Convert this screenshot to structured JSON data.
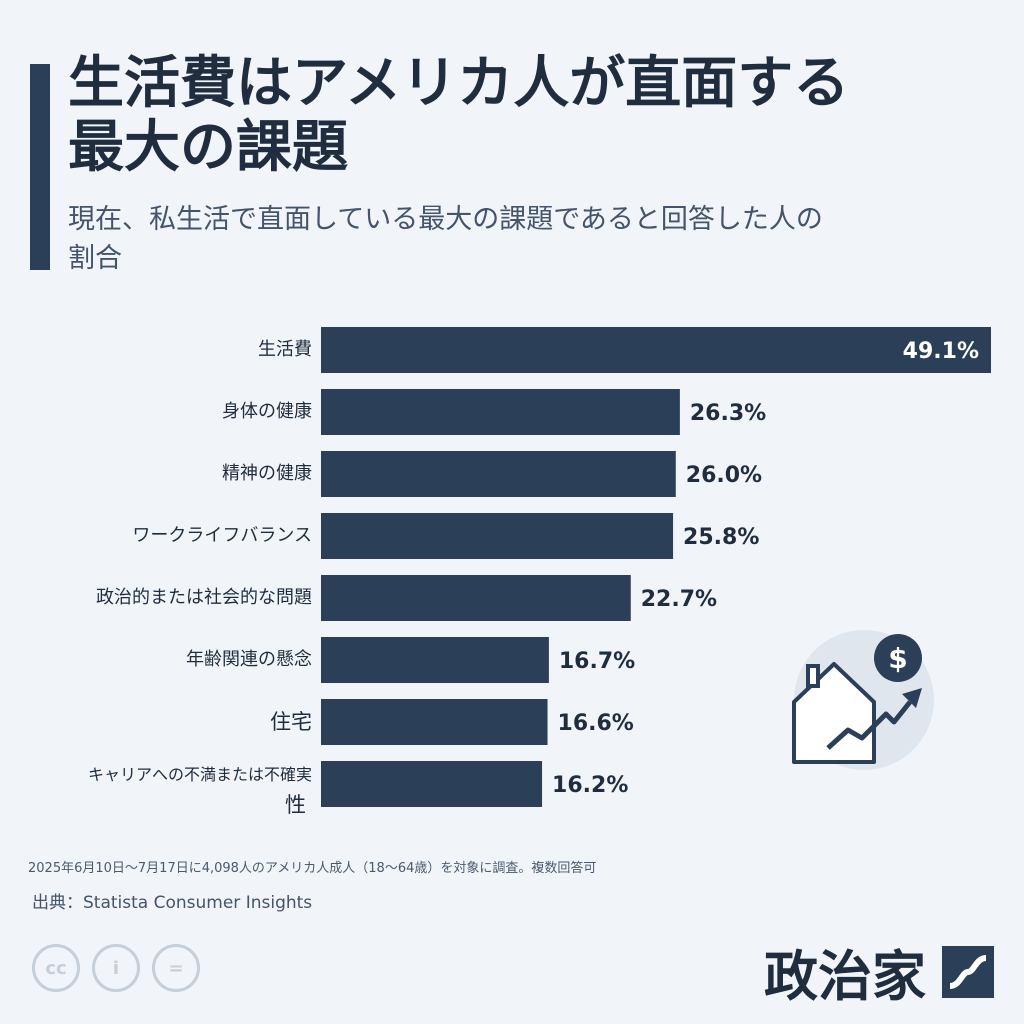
{
  "header": {
    "title_line1": "生活費はアメリカ人が直面する",
    "title_line2": "最大の課題",
    "subtitle_line1": "現在、私生活で直面している最大の課題であると回答した人の",
    "subtitle_line2": "割合"
  },
  "chart_data": {
    "type": "bar",
    "orientation": "horizontal",
    "categories": [
      "生活費",
      "身体の健康",
      "精神の健康",
      "ワークライフバランス",
      "政治的または社会的な問題",
      "年齢関連の懸念",
      "住宅",
      "キャリアへの不満または不確実性"
    ],
    "category_lines": [
      [
        "生活費"
      ],
      [
        "身体の健康"
      ],
      [
        "精神の健康"
      ],
      [
        "ワークライフバランス"
      ],
      [
        "政治的または社会的な問題"
      ],
      [
        "年齢関連の懸念"
      ],
      [
        "住宅"
      ],
      [
        "キャリアへの不満または不確実",
        "性"
      ]
    ],
    "values": [
      49.1,
      26.3,
      26.0,
      25.8,
      22.7,
      16.7,
      16.6,
      16.2
    ],
    "value_labels": [
      "49.1%",
      "26.3%",
      "26.0%",
      "25.8%",
      "22.7%",
      "16.7%",
      "16.6%",
      "16.2%"
    ],
    "xlim": [
      0,
      49.1
    ],
    "bar_color": "#2b3f58"
  },
  "footer": {
    "note": "2025年6月10日～7月17日に4,098人のアメリカ人成人（18～64歳）を対象に調査。複数回答可",
    "source": "出典：Statista Consumer Insights",
    "cc_icons": [
      "cc",
      "i",
      "="
    ],
    "brand": "政治家"
  },
  "icons": [
    "house-growth-icon",
    "dollar-icon",
    "brand-logo-icon",
    "cc-icon",
    "attribution-icon",
    "no-derivatives-icon"
  ]
}
